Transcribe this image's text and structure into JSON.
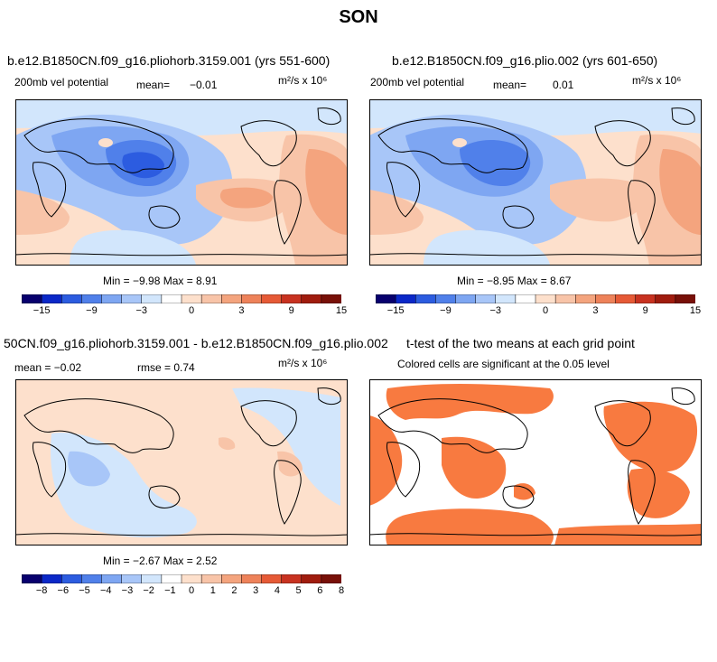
{
  "figure": {
    "title": "SON"
  },
  "colors": {
    "diverging": [
      "#08006e",
      "#0b28c8",
      "#2c5ce0",
      "#5080ea",
      "#7ea6f2",
      "#a8c6f8",
      "#d2e6fc",
      "#ffffff",
      "#fde0cc",
      "#f8c4a8",
      "#f4a47e",
      "#ee825a",
      "#e65a36",
      "#c83220",
      "#a01c0e",
      "#781008"
    ],
    "significant": "#f87a40",
    "coast": "#000000"
  },
  "panels": [
    {
      "title": "b.e12.B1850CN.f09_g16.pliohorb.3159.001 (yrs 551-600)",
      "variable": "200mb vel potential",
      "mean_label": "mean=",
      "mean_value": "−0.01",
      "units": "m²/s x 10⁶",
      "stats": "Min =   −9.98 Max =    8.91"
    },
    {
      "title": "b.e12.B1850CN.f09_g16.plio.002 (yrs 601-650)",
      "variable": "200mb vel potential",
      "mean_label": "mean=",
      "mean_value": "0.01",
      "units": "m²/s x 10⁶",
      "stats": "Min =   −8.95 Max =    8.67"
    },
    {
      "title": "50CN.f09_g16.pliohorb.3159.001 - b.e12.B1850CN.f09_g16.plio.002",
      "mean_text": "mean =  −0.02",
      "rmse_text": "rmse =    0.74",
      "units": "m²/s x 10⁶",
      "stats": "Min =   −2.67 Max =    2.52"
    },
    {
      "title": "t-test of the two means at each grid point",
      "subtitle": "Colored cells are significant at the 0.05 level"
    }
  ],
  "colorbar_top": {
    "labels": [
      "−15",
      "−9",
      "−3",
      "0",
      "3",
      "9",
      "15"
    ]
  },
  "colorbar_diff": {
    "labels": [
      "−8",
      "−6",
      "−5",
      "−4",
      "−3",
      "−2",
      "−1",
      "0",
      "1",
      "2",
      "3",
      "4",
      "5",
      "6",
      "8"
    ]
  }
}
